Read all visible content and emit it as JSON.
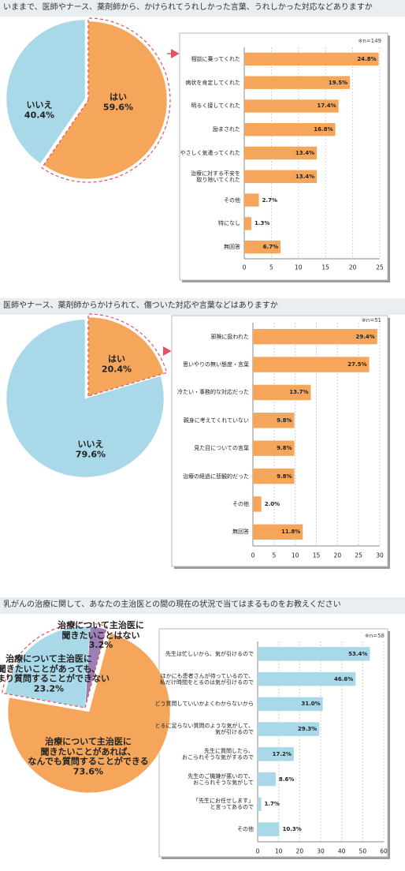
{
  "questions": [
    "いままで、医師やナース、薬剤師から、かけられてうれしかった言葉、うれしかった対応などありますか",
    "医師やナース、薬剤師からかけられて、傷ついた対応や言葉などはありますか",
    "乳がんの治療に関して、あなたの主治医との間の現在の状況で当てはまるものをお教えください"
  ],
  "chart_data": [
    {
      "type": "pie",
      "categories": [
        "はい",
        "いいえ"
      ],
      "values": [
        59.6,
        40.4
      ],
      "value_labels": [
        "59.6%",
        "40.4%"
      ],
      "colors": [
        "#f5a65b",
        "#a9d8e8"
      ]
    },
    {
      "type": "barh",
      "note": "※n=149",
      "categories": [
        "相談に乗ってくれた",
        "病状を肯定してくれた",
        "明るく接してくれた",
        "励まされた",
        "やさしく気遣ってくれた",
        "治療に対する不安を\n取り除いてくれた",
        "その他",
        "特になし",
        "無回答"
      ],
      "values": [
        24.8,
        19.5,
        17.4,
        16.8,
        13.4,
        13.4,
        2.7,
        1.3,
        6.7
      ],
      "value_labels": [
        "24.8%",
        "19.5%",
        "17.4%",
        "16.8%",
        "13.4%",
        "13.4%",
        "2.7%",
        "1.3%",
        "6.7%"
      ],
      "color": "#f5a65b",
      "xlim": [
        0,
        25
      ],
      "xticks": [
        0,
        5,
        10,
        15,
        20,
        25
      ],
      "grid": true
    },
    {
      "type": "pie",
      "categories": [
        "はい",
        "いいえ"
      ],
      "values": [
        20.4,
        79.6
      ],
      "value_labels": [
        "20.4%",
        "79.6%"
      ],
      "colors": [
        "#f5a65b",
        "#a9d8e8"
      ]
    },
    {
      "type": "barh",
      "note": "※n=51",
      "categories": [
        "邪険に扱われた",
        "思いやりの無い態度・言葉",
        "冷たい・事務的な対応だった",
        "親身に考えてくれていない",
        "見た目についての言葉",
        "治療の経過に悲観的だった",
        "その他",
        "無回答"
      ],
      "values": [
        29.4,
        27.5,
        13.7,
        9.8,
        9.8,
        9.8,
        2.0,
        11.8
      ],
      "value_labels": [
        "29.4%",
        "27.5%",
        "13.7%",
        "9.8%",
        "9.8%",
        "9.8%",
        "2.0%",
        "11.8%"
      ],
      "color": "#f5a65b",
      "xlim": [
        0,
        30
      ],
      "xticks": [
        0,
        5,
        10,
        15,
        20,
        25,
        30
      ],
      "grid": true
    },
    {
      "type": "pie",
      "categories": [
        "治療について主治医に\n聞きたいことはない",
        "治療について主治医に\n聞きたいことがあっても、\nあまり質問することができない",
        "治療について主治医に\n聞きたいことがあれば、\nなんでも質問することができる"
      ],
      "values": [
        3.2,
        23.2,
        73.6
      ],
      "value_labels": [
        "3.2%",
        "23.2%",
        "73.6%"
      ],
      "colors": [
        "#9b80b8",
        "#a9d8e8",
        "#f5a65b"
      ]
    },
    {
      "type": "barh",
      "note": "※n=58",
      "categories": [
        "先生は忙しいから、気が引けるので",
        "ほかにも患者さんが待っているので、\n私だけ時間をとるのは気が引けるので",
        "どう質問していいかよくわからないから",
        "とるに足らない質問のような気がして、\n気が引けるので",
        "先生に質問したら、\nおこられそうな気がするので",
        "先生のご機嫌が悪いので、\nおこられそうな気がして",
        "「先生にお任せします」\nと言ってあるので",
        "その他"
      ],
      "values": [
        53.4,
        46.6,
        31.0,
        29.3,
        17.2,
        8.6,
        1.7,
        10.3
      ],
      "value_labels": [
        "53.4%",
        "46.6%",
        "31.0%",
        "29.3%",
        "17.2%",
        "8.6%",
        "1.7%",
        "10.3%"
      ],
      "color": "#a9d8e8",
      "xlim": [
        0,
        60
      ],
      "xticks": [
        0,
        10,
        20,
        30,
        40,
        50,
        60
      ],
      "grid": true
    }
  ]
}
